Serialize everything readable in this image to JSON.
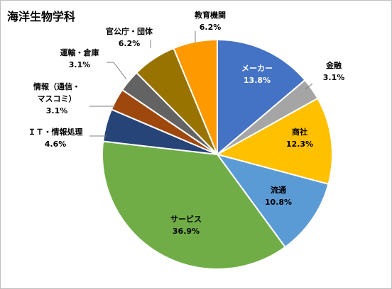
{
  "title": "海洋生物学科",
  "chart_data": {
    "type": "pie",
    "title": "海洋生物学科",
    "start_angle_deg": 0,
    "direction": "clockwise",
    "slices": [
      {
        "label": "メーカー",
        "value": 13.8,
        "percent_label": "13.8%",
        "color": "#4472C4",
        "label_color": "#ffffff"
      },
      {
        "label": "金融",
        "value": 3.1,
        "percent_label": "3.1%",
        "color": "#A5A5A5",
        "label_color": "#000000"
      },
      {
        "label": "商社",
        "value": 12.3,
        "percent_label": "12.3%",
        "color": "#FFC000",
        "label_color": "#000000"
      },
      {
        "label": "流通",
        "value": 10.8,
        "percent_label": "10.8%",
        "color": "#5B9BD5",
        "label_color": "#000000"
      },
      {
        "label": "サービス",
        "value": 36.9,
        "percent_label": "36.9%",
        "color": "#70AD47",
        "label_color": "#000000"
      },
      {
        "label": "ＩＴ・情報処理",
        "value": 4.6,
        "percent_label": "4.6%",
        "color": "#264478",
        "label_color": "#000000"
      },
      {
        "label": "情報（通信・マスコミ）",
        "label_lines": [
          "情報（通信・",
          "マスコミ）"
        ],
        "value": 3.1,
        "percent_label": "3.1%",
        "color": "#9E480E",
        "label_color": "#000000"
      },
      {
        "label": "運輸・倉庫",
        "value": 3.1,
        "percent_label": "3.1%",
        "color": "#636363",
        "label_color": "#000000"
      },
      {
        "label": "官公庁・団体",
        "value": 6.2,
        "percent_label": "6.2%",
        "color": "#997300",
        "label_color": "#000000"
      },
      {
        "label": "教育機関",
        "value": 6.2,
        "percent_label": "6.2%",
        "color": "#FF9900",
        "label_color": "#000000"
      }
    ]
  }
}
